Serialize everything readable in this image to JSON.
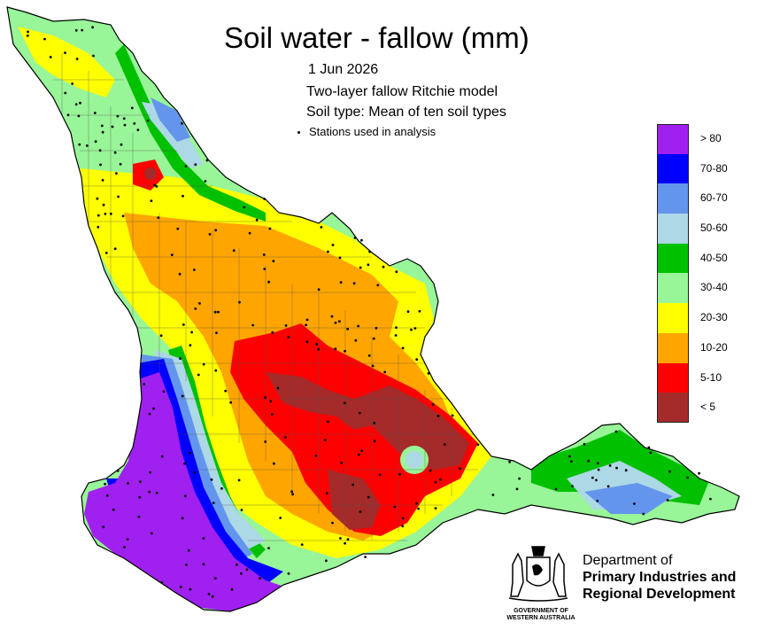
{
  "title": "Soil water - fallow (mm)",
  "date": "1 Jun 2026",
  "model": "Two-layer fallow Ritchie model",
  "soil_type": "Soil type: Mean of ten soil types",
  "stations_note": "Stations used in analysis",
  "legend": [
    {
      "label": "> 80",
      "color": "#a020f0"
    },
    {
      "label": "70-80",
      "color": "#0000ff"
    },
    {
      "label": "60-70",
      "color": "#6495ed"
    },
    {
      "label": "50-60",
      "color": "#add8e6"
    },
    {
      "label": "40-50",
      "color": "#00c000"
    },
    {
      "label": "30-40",
      "color": "#98f598"
    },
    {
      "label": "20-30",
      "color": "#ffff00"
    },
    {
      "label": "10-20",
      "color": "#ffa500"
    },
    {
      "label": "5-10",
      "color": "#ff0000"
    },
    {
      "label": "< 5",
      "color": "#a52a2a"
    }
  ],
  "department": {
    "line1": "Department of",
    "line2": "Primary Industries and",
    "line3": "Regional Development"
  },
  "government": {
    "line1": "GOVERNMENT OF",
    "line2": "WESTERN AUSTRALIA"
  }
}
